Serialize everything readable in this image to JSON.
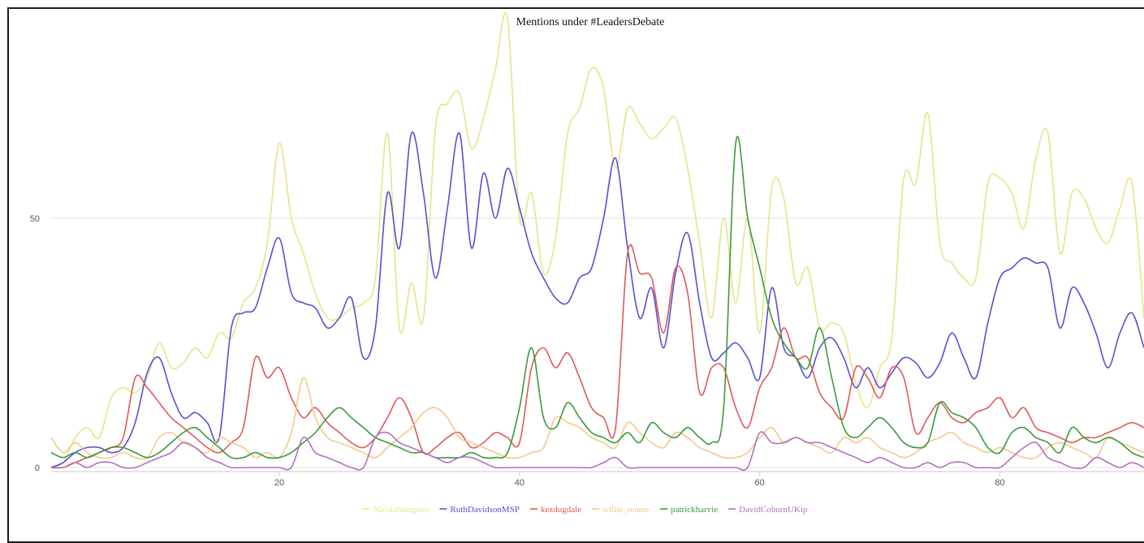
{
  "chart_data": {
    "type": "line",
    "title": "Mentions under #LeadersDebate",
    "xlabel": "",
    "ylabel": "",
    "xlim": [
      1,
      92
    ],
    "ylim": [
      0,
      90
    ],
    "x_ticks": [
      20,
      40,
      60,
      80
    ],
    "y_ticks": [
      0,
      50
    ],
    "grid": "horizontal",
    "legend_position": "bottom",
    "x": [
      1,
      2,
      3,
      4,
      5,
      6,
      7,
      8,
      9,
      10,
      11,
      12,
      13,
      14,
      15,
      16,
      17,
      18,
      19,
      20,
      21,
      22,
      23,
      24,
      25,
      26,
      27,
      28,
      29,
      30,
      31,
      32,
      33,
      34,
      35,
      36,
      37,
      38,
      39,
      40,
      41,
      42,
      43,
      44,
      45,
      46,
      47,
      48,
      49,
      50,
      51,
      52,
      53,
      54,
      55,
      56,
      57,
      58,
      59,
      60,
      61,
      62,
      63,
      64,
      65,
      66,
      67,
      68,
      69,
      70,
      71,
      72,
      73,
      74,
      75,
      76,
      77,
      78,
      79,
      80,
      81,
      82,
      83,
      84,
      85,
      86,
      87,
      88,
      89,
      90,
      91,
      92
    ],
    "series": [
      {
        "name": "NicolaSturgeon",
        "color": "#e6e48a",
        "values": [
          0,
          1,
          6,
          8,
          6,
          14,
          16,
          15,
          18,
          25,
          20,
          21,
          24,
          22,
          27,
          26,
          33,
          36,
          45,
          65,
          50,
          43,
          35,
          30,
          30,
          32,
          33,
          38,
          67,
          28,
          37,
          30,
          68,
          73,
          75,
          64,
          70,
          80,
          90,
          50,
          55,
          39,
          46,
          67,
          72,
          80,
          76,
          60,
          72,
          69,
          66,
          68,
          70,
          60,
          45,
          30,
          50,
          33,
          50,
          27,
          56,
          54,
          37,
          40,
          28,
          29,
          27,
          17,
          12,
          20,
          26,
          58,
          57,
          71,
          45,
          41,
          38,
          38,
          57,
          58,
          55,
          48,
          62,
          67,
          43,
          55,
          54,
          48,
          45,
          52,
          57,
          30
        ]
      },
      {
        "name": "RuthDavidsonMSP",
        "color": "#5a4fd0",
        "values": [
          0,
          1,
          3,
          4,
          4,
          3,
          4,
          9,
          19,
          22,
          15,
          10,
          11,
          9,
          6,
          28,
          31,
          32,
          40,
          46,
          35,
          33,
          32,
          28,
          30,
          34,
          22,
          28,
          55,
          44,
          67,
          55,
          38,
          52,
          67,
          44,
          59,
          50,
          60,
          52,
          43,
          38,
          34,
          33,
          38,
          40,
          50,
          62,
          44,
          30,
          36,
          24,
          39,
          47,
          33,
          22,
          23,
          25,
          22,
          18,
          36,
          24,
          22,
          18,
          24,
          26,
          22,
          16,
          20,
          16,
          19,
          22,
          21,
          18,
          21,
          27,
          22,
          18,
          29,
          38,
          40,
          42,
          41,
          40,
          28,
          36,
          33,
          27,
          20,
          27,
          31,
          24
        ]
      },
      {
        "name": "kezdugdale",
        "color": "#e05858",
        "values": [
          0,
          0,
          1,
          2,
          3,
          4,
          6,
          18,
          16,
          13,
          10,
          8,
          6,
          4,
          3,
          5,
          8,
          22,
          18,
          20,
          14,
          10,
          12,
          9,
          7,
          5,
          4,
          6,
          10,
          14,
          10,
          3,
          4,
          6,
          7,
          4,
          5,
          7,
          6,
          5,
          20,
          24,
          20,
          23,
          18,
          12,
          10,
          8,
          43,
          39,
          38,
          27,
          40,
          35,
          15,
          20,
          20,
          12,
          8,
          16,
          20,
          28,
          22,
          22,
          15,
          12,
          10,
          20,
          18,
          14,
          20,
          18,
          7,
          10,
          13,
          10,
          9,
          11,
          12,
          14,
          10,
          12,
          8,
          7,
          6,
          5,
          6,
          6,
          7,
          8,
          9,
          8
        ]
      },
      {
        "name": "willie_rennie",
        "color": "#f3c98a",
        "values": [
          6,
          3,
          5,
          3,
          2,
          2,
          3,
          2,
          2,
          6,
          7,
          5,
          4,
          3,
          6,
          5,
          4,
          2,
          3,
          2,
          7,
          18,
          10,
          6,
          5,
          4,
          3,
          2,
          4,
          6,
          8,
          11,
          12,
          10,
          6,
          5,
          4,
          3,
          2,
          2,
          3,
          4,
          10,
          9,
          8,
          6,
          5,
          4,
          9,
          7,
          5,
          4,
          7,
          6,
          4,
          3,
          2,
          2,
          3,
          6,
          8,
          5,
          6,
          5,
          4,
          3,
          6,
          5,
          6,
          4,
          3,
          2,
          3,
          5,
          6,
          7,
          5,
          4,
          3,
          4,
          3,
          2,
          2,
          4,
          5,
          4,
          3,
          2,
          6,
          5,
          4,
          3
        ]
      },
      {
        "name": "patrickharvie",
        "color": "#3b9a3b",
        "values": [
          3,
          2,
          3,
          2,
          3,
          4,
          4,
          3,
          2,
          3,
          5,
          7,
          8,
          6,
          4,
          2,
          2,
          3,
          2,
          2,
          3,
          5,
          7,
          10,
          12,
          10,
          8,
          6,
          5,
          4,
          3,
          3,
          2,
          2,
          2,
          3,
          2,
          2,
          3,
          12,
          24,
          10,
          8,
          13,
          10,
          7,
          6,
          5,
          7,
          5,
          9,
          7,
          6,
          8,
          6,
          5,
          12,
          65,
          50,
          40,
          30,
          25,
          22,
          20,
          28,
          18,
          8,
          6,
          8,
          10,
          8,
          5,
          4,
          5,
          13,
          11,
          10,
          8,
          4,
          3,
          7,
          8,
          6,
          5,
          3,
          8,
          6,
          5,
          6,
          5,
          3,
          2
        ]
      },
      {
        "name": "DavidCoburnUKip",
        "color": "#b46ec0",
        "values": [
          0,
          0,
          1,
          0,
          1,
          1,
          0,
          0,
          1,
          2,
          3,
          5,
          4,
          2,
          1,
          0,
          0,
          0,
          0,
          0,
          0,
          6,
          3,
          2,
          1,
          0,
          0,
          6,
          7,
          5,
          4,
          3,
          2,
          1,
          2,
          2,
          1,
          0,
          0,
          0,
          0,
          0,
          0,
          0,
          0,
          0,
          1,
          2,
          0,
          0,
          0,
          0,
          0,
          0,
          0,
          0,
          0,
          0,
          0,
          7,
          5,
          5,
          6,
          5,
          5,
          4,
          3,
          2,
          1,
          2,
          1,
          0,
          0,
          1,
          0,
          1,
          1,
          0,
          0,
          0,
          2,
          4,
          5,
          2,
          1,
          0,
          0,
          2,
          1,
          0,
          1,
          0
        ]
      }
    ]
  }
}
